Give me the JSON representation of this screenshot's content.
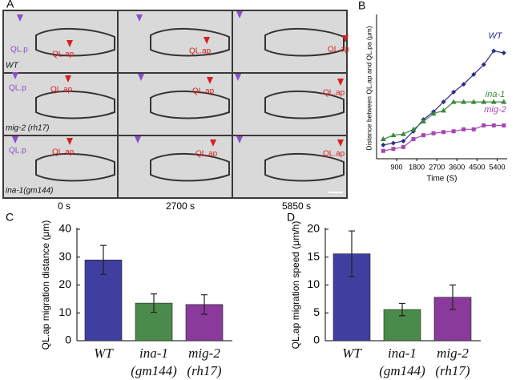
{
  "panel_labels": [
    "A",
    "B",
    "C",
    "D"
  ],
  "microscopy": {
    "rows": [
      {
        "label": "WT",
        "cells": [
          [
            "QL.p",
            "QL.ap"
          ],
          [
            "QL.ap"
          ],
          [
            "QL.ap"
          ]
        ]
      },
      {
        "label": "mig-2 (rh17)",
        "cells": [
          [
            "QL.p",
            "QL.ap"
          ],
          [
            "QL.ap"
          ],
          [
            "QL.ap"
          ]
        ]
      },
      {
        "label": "ina-1(gm144)",
        "cells": [
          [
            "QL.p",
            "QL.ap"
          ],
          [
            "QL.ap"
          ],
          [
            "QL.ap"
          ]
        ]
      }
    ],
    "times": [
      "0 s",
      "2700 s",
      "5850 s"
    ]
  },
  "chart_data": [
    {
      "type": "line",
      "x_label": "Time (S)",
      "y_label": "Distance between QL.ap and QL.pa (μm)",
      "x": [
        300,
        750,
        1200,
        1650,
        2100,
        2550,
        3000,
        3450,
        3900,
        4350,
        4800,
        5250,
        5700
      ],
      "xlim": [
        0,
        5850
      ],
      "xticks": [
        900,
        1800,
        2700,
        3600,
        4500,
        5400
      ],
      "ylim": [
        0,
        36
      ],
      "series": [
        {
          "name": "WT",
          "color": "#2e2e8c",
          "marker": "diamond",
          "values": [
            3.5,
            4,
            4.5,
            7,
            10,
            12,
            14.5,
            17,
            19,
            21.5,
            24,
            27.5,
            27
          ]
        },
        {
          "name": "ina-1",
          "color": "#3a8a3a",
          "marker": "triangle",
          "values": [
            5,
            6,
            6.3,
            7.5,
            9.5,
            11.5,
            12.3,
            14.5,
            14.5,
            14.5,
            14.5,
            14.5,
            14.5
          ]
        },
        {
          "name": "mig-2",
          "color": "#a545b5",
          "marker": "square",
          "values": [
            2,
            2.5,
            3,
            5,
            6,
            6.5,
            6.8,
            7,
            7.5,
            7.5,
            8.5,
            8.5,
            8.5
          ]
        }
      ]
    },
    {
      "type": "bar",
      "y_label": "QL.ap migration distance (μm)",
      "categories": [
        "WT",
        "ina-1 (gm144)",
        "mig-2 (rh17)"
      ],
      "values": [
        29,
        13.5,
        13
      ],
      "errors": [
        5.2,
        3.3,
        3.5
      ],
      "colors": [
        "#3f3fa0",
        "#4a8a4a",
        "#8a3a9a"
      ],
      "ylim": [
        0,
        40
      ],
      "yticks": [
        0,
        10,
        20,
        30,
        40
      ]
    },
    {
      "type": "bar",
      "y_label": "QL.ap migration speed (μm/h)",
      "categories": [
        "WT",
        "ina-1 (gm144)",
        "mig-2 (rh17)"
      ],
      "values": [
        15.6,
        5.6,
        7.8
      ],
      "errors": [
        4.1,
        1.1,
        2.2
      ],
      "colors": [
        "#3f3fa0",
        "#4a8a4a",
        "#8a3a9a"
      ],
      "ylim": [
        0,
        20
      ],
      "yticks": [
        0,
        5,
        10,
        15,
        20
      ]
    }
  ]
}
